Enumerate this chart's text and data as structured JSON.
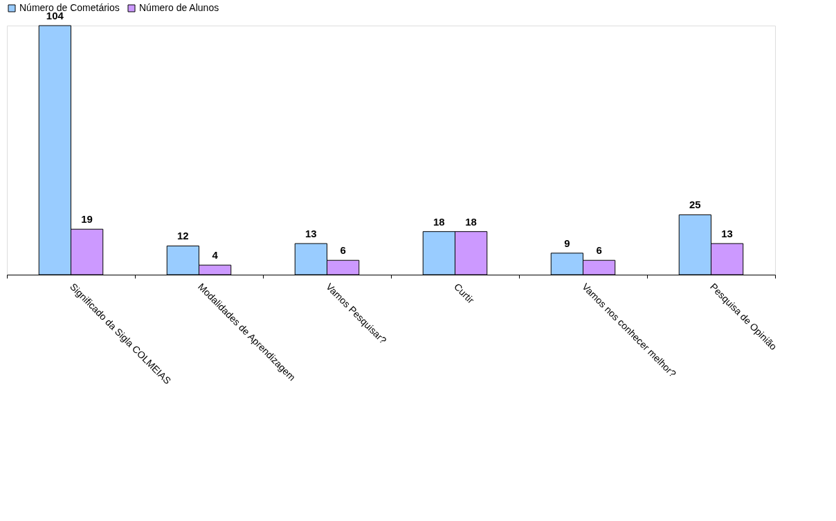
{
  "chart_data": {
    "type": "bar",
    "categories": [
      "Significado da Sigla COLMEIAS",
      "Modalidades de Aprendizagem",
      "Vamos Pesquisar?",
      "Curtir",
      "Vamos nos conhecer melhor?",
      "Pesquisa de Opinião"
    ],
    "series": [
      {
        "name": "Número de Cometários",
        "color": "#99ccff",
        "values": [
          104,
          12,
          13,
          18,
          9,
          25
        ]
      },
      {
        "name": "Número de Alunos",
        "color": "#cc99ff",
        "values": [
          19,
          4,
          6,
          18,
          6,
          13
        ]
      }
    ],
    "data_labels": true,
    "legend": "top",
    "grid": false
  }
}
